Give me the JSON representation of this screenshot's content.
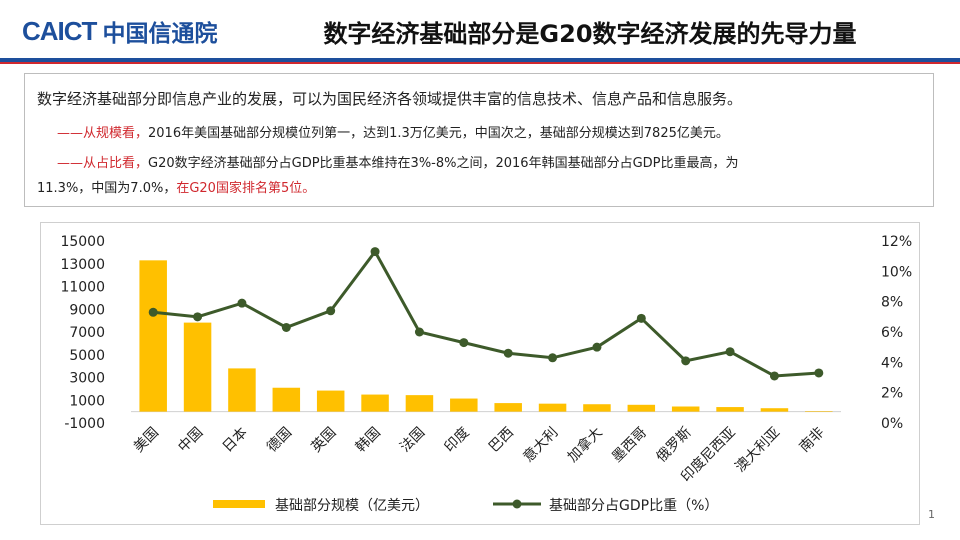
{
  "header": {
    "logo_en": "CAICT",
    "logo_cn": "中国信通院",
    "title": "数字经济基础部分是G20数字经济发展的先导力量"
  },
  "text": {
    "intro": "数字经济基础部分即信息产业的发展，可以为国民经济各领域提供丰富的信息技术、信息产品和信息服务。",
    "p1_lead": "——从规模看，",
    "p1_body": "2016年美国基础部分规模位列第一，达到1.3万亿美元，中国次之，基础部分规模达到7825亿美元。",
    "p2_lead": "——从占比看，",
    "p2_body_line1": "G20数字经济基础部分占GDP比重基本维持在3%-8%之间，2016年韩国基础部分占GDP比重最高，为",
    "p2_line2_a": "11.3%，中国为7.0%，",
    "p2_line2_b": "在G20国家排名第5位。"
  },
  "colors": {
    "bar": "#ffc000",
    "line": "#3d5a2a",
    "accent_red": "#d0282e",
    "brand_blue": "#1d4f9c"
  },
  "chart_data": {
    "type": "bar",
    "categories": [
      "美国",
      "中国",
      "日本",
      "德国",
      "英国",
      "韩国",
      "法国",
      "印度",
      "巴西",
      "意大利",
      "加拿大",
      "墨西哥",
      "俄罗斯",
      "印度尼西亚",
      "澳大利亚",
      "南非"
    ],
    "series": [
      {
        "name": "基础部分规模（亿美元）",
        "type": "bar",
        "axis": "left",
        "values": [
          13300,
          7825,
          3800,
          2100,
          1850,
          1500,
          1450,
          1150,
          750,
          700,
          650,
          600,
          450,
          400,
          300,
          50
        ]
      },
      {
        "name": "基础部分占GDP比重（%）",
        "type": "line",
        "axis": "right",
        "values": [
          7.3,
          7.0,
          7.9,
          6.3,
          7.4,
          11.3,
          6.0,
          5.3,
          4.6,
          4.3,
          5.0,
          6.9,
          4.1,
          4.7,
          3.1,
          3.3
        ]
      }
    ],
    "y_left": {
      "min": -1000,
      "max": 15000,
      "ticks": [
        -1000,
        1000,
        3000,
        5000,
        7000,
        9000,
        11000,
        13000,
        15000
      ]
    },
    "y_right": {
      "min": 0,
      "max": 12,
      "ticks": [
        "0%",
        "2%",
        "4%",
        "6%",
        "8%",
        "10%",
        "12%"
      ]
    },
    "legend_position": "bottom",
    "grid": false
  },
  "page_number": "1"
}
